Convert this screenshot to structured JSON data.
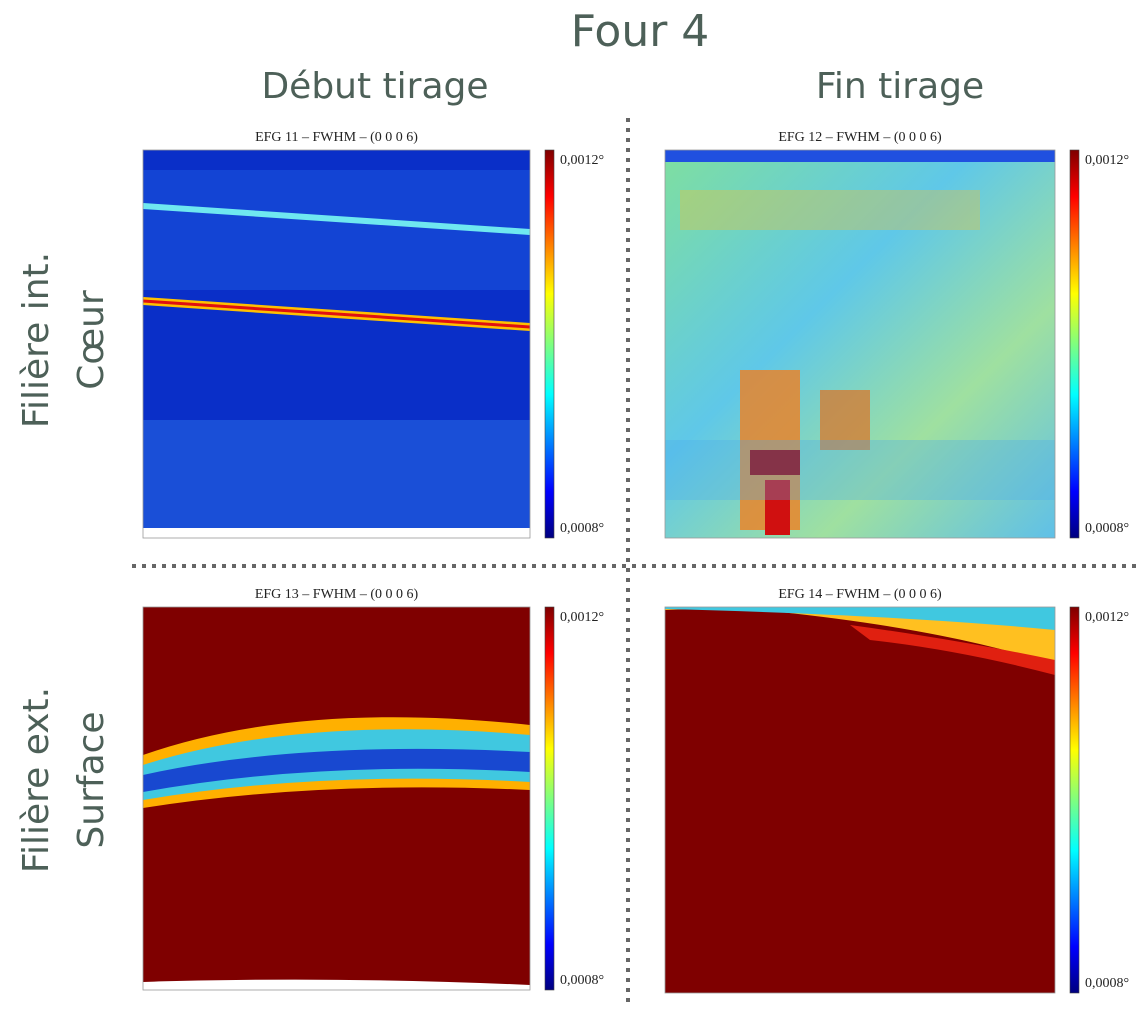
{
  "title": "Four 4",
  "columns": [
    "Début tirage",
    "Fin tirage"
  ],
  "rows": [
    {
      "label": "Filière int.",
      "sublabel": "Cœur"
    },
    {
      "label": "Filière ext.",
      "sublabel": "Surface"
    }
  ],
  "panels": [
    {
      "title": "EFG 11 – FWHM – (0 0 0 6)",
      "colorbar": {
        "max": "0,0012°",
        "min": "0,0008°"
      }
    },
    {
      "title": "EFG 12 – FWHM – (0 0 0 6)",
      "colorbar": {
        "max": "0,0012°",
        "min": "0,0008°"
      }
    },
    {
      "title": "EFG 13 – FWHM – (0 0 0 6)",
      "colorbar": {
        "max": "0,0012°",
        "min": "0,0008°"
      }
    },
    {
      "title": "EFG 14 – FWHM – (0 0 0 6)",
      "colorbar": {
        "max": "0,0012°",
        "min": "0,0008°"
      }
    }
  ]
}
